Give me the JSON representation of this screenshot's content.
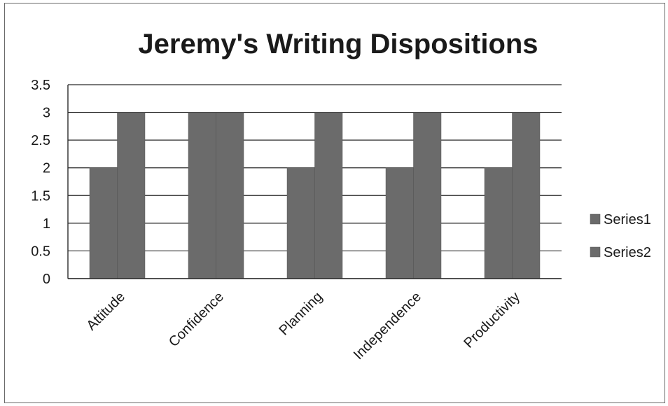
{
  "chart_data": {
    "type": "bar",
    "title": "Jeremy's Writing Dispositions",
    "xlabel": "",
    "ylabel": "",
    "categories": [
      "Attitude",
      "Confidence",
      "Planning",
      "Independence",
      "Productivity"
    ],
    "series": [
      {
        "name": "Series1",
        "values": [
          2,
          3,
          2,
          2,
          2
        ],
        "color": "#6b6b6b"
      },
      {
        "name": "Series2",
        "values": [
          3,
          3,
          3,
          3,
          3
        ],
        "color": "#6b6b6b"
      }
    ],
    "ylim": [
      0,
      3.5
    ],
    "yticks": [
      "0",
      "0.5",
      "1",
      "1.5",
      "2",
      "2.5",
      "3",
      "3.5"
    ],
    "grid": true,
    "legend": "right"
  }
}
